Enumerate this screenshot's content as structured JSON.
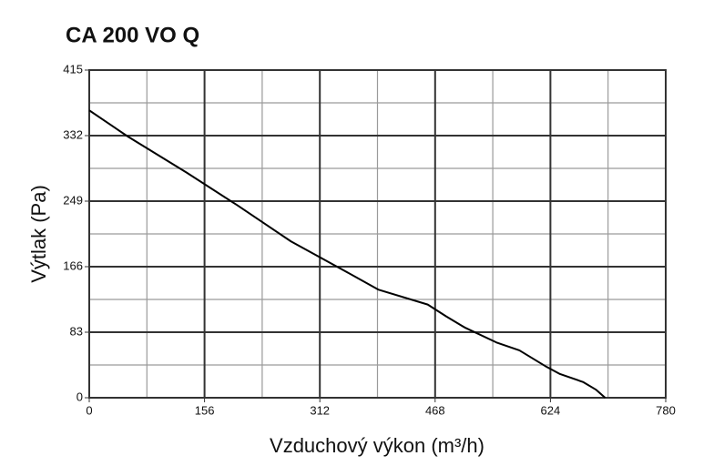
{
  "chart_data": {
    "type": "line",
    "title": "CA 200 VO Q",
    "x_label": "Vzduchový výkon (m³/h)",
    "y_label": "Výtlak (Pa)",
    "xlim": [
      0,
      780
    ],
    "xticks": [
      0,
      156,
      312,
      468,
      624,
      780
    ],
    "ylim": [
      0,
      415
    ],
    "yticks": [
      0,
      83,
      166,
      249,
      332,
      415
    ],
    "x_minor_grid": [
      78,
      234,
      390,
      546,
      702
    ],
    "y_minor_grid": [
      41.5,
      124.5,
      207.5,
      290.5,
      373.5
    ],
    "grid": true,
    "series": [
      {
        "name": "CA 200 VO Q",
        "color": "#000000",
        "x": [
          0,
          52,
          132,
          200,
          273,
          347,
          391,
          458,
          483,
          508,
          551,
          582,
          619,
          637,
          668,
          686,
          698
        ],
        "values": [
          364,
          331,
          285,
          244,
          198,
          160,
          137,
          118,
          103,
          89,
          70,
          60,
          39,
          30,
          20,
          10,
          0
        ]
      }
    ]
  }
}
